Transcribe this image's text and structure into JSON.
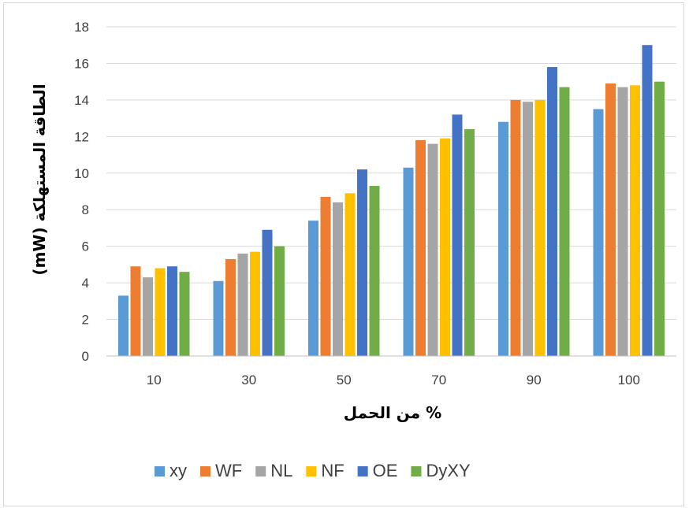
{
  "chart_data": {
    "type": "bar",
    "xlabel": "% من الحمل",
    "ylabel": "الطاقة المستهلكة (mW)",
    "categories": [
      "10",
      "30",
      "50",
      "70",
      "90",
      "100"
    ],
    "ylim": [
      0,
      18
    ],
    "yticks": [
      0,
      2,
      4,
      6,
      8,
      10,
      12,
      14,
      16,
      18
    ],
    "grid": true,
    "legend_position": "bottom",
    "series": [
      {
        "name": "xy",
        "color": "#5B9BD5",
        "values": [
          3.3,
          4.1,
          7.4,
          10.3,
          12.8,
          13.5
        ]
      },
      {
        "name": "WF",
        "color": "#ED7D31",
        "values": [
          4.9,
          5.3,
          8.7,
          11.8,
          14.0,
          14.9
        ]
      },
      {
        "name": "NL",
        "color": "#A5A5A5",
        "values": [
          4.3,
          5.6,
          8.4,
          11.6,
          13.9,
          14.7
        ]
      },
      {
        "name": "NF",
        "color": "#FFC000",
        "values": [
          4.8,
          5.7,
          8.9,
          11.9,
          14.0,
          14.8
        ]
      },
      {
        "name": "OE",
        "color": "#4472C4",
        "values": [
          4.9,
          6.9,
          10.2,
          13.2,
          15.8,
          17.0
        ]
      },
      {
        "name": "DyXY",
        "color": "#70AD47",
        "values": [
          4.6,
          6.0,
          9.3,
          12.4,
          14.7,
          15.0
        ]
      }
    ]
  }
}
